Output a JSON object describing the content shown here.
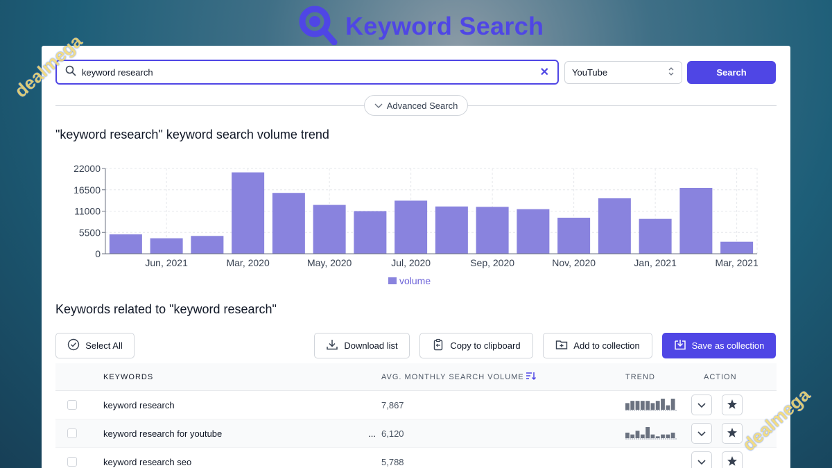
{
  "brand": {
    "title": "Keyword Search",
    "color": "#4f46e5"
  },
  "search": {
    "value": "keyword research",
    "placeholder": ""
  },
  "platform": {
    "selected": "YouTube"
  },
  "search_button": {
    "label": "Search"
  },
  "advanced": {
    "label": "Advanced Search"
  },
  "chart": {
    "title": "\"keyword research\" keyword search volume trend"
  },
  "chart_data": {
    "type": "bar",
    "categories": [
      "",
      "Jun, 2021",
      "",
      "Mar, 2020",
      "",
      "May, 2020",
      "",
      "Jul, 2020",
      "",
      "Sep, 2020",
      "",
      "Nov, 2020",
      "",
      "Jan, 2021",
      "",
      "Mar, 2021"
    ],
    "series": [
      {
        "name": "volume",
        "values": [
          5000,
          4000,
          4600,
          21000,
          15700,
          12600,
          11000,
          13700,
          12200,
          12100,
          11500,
          9300,
          14300,
          9000,
          17000,
          3100
        ],
        "color": "#8983de"
      }
    ],
    "yticks": [
      0,
      5500,
      11000,
      16500,
      22000
    ],
    "ylim": [
      0,
      22000
    ],
    "grid": true,
    "legend": "bottom"
  },
  "related": {
    "title": "Keywords related to \"keyword research\""
  },
  "toolbar": {
    "select_all": "Select All",
    "download": "Download list",
    "copy": "Copy to clipboard",
    "add": "Add to collection",
    "save": "Save as collection"
  },
  "table": {
    "headers": {
      "keywords": "KEYWORDS",
      "volume": "AVG. MONTHLY SEARCH VOLUME",
      "trend": "TREND",
      "action": "ACTION"
    },
    "rows": [
      {
        "keyword": "keyword research",
        "extra": "",
        "volume": "7,867",
        "trend": [
          3,
          4,
          4,
          4,
          4,
          3,
          4,
          5,
          2,
          5
        ]
      },
      {
        "keyword": "keyword research for youtube",
        "extra": "...",
        "volume": "6,120",
        "trend": [
          3,
          2,
          4,
          2,
          6,
          2,
          1,
          2,
          2,
          3
        ]
      },
      {
        "keyword": "keyword research seo",
        "extra": "",
        "volume": "5,788",
        "trend": []
      }
    ]
  },
  "watermark": {
    "text": "dealmega"
  }
}
